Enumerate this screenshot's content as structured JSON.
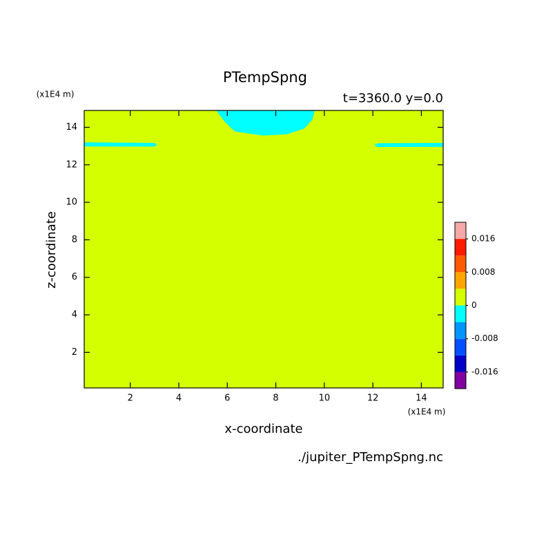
{
  "chart_data": {
    "type": "contourf",
    "title": "PTempSpng",
    "subtitle": "t=3360.0 y=0.0",
    "x_label": "x-coordinate",
    "y_label": "z-coordinate",
    "x_unit": "(x1E4 m)",
    "y_unit": "(x1E4 m)",
    "source": "./jupiter_PTempSpng.nc",
    "xlim": [
      0.1,
      14.9
    ],
    "ylim": [
      0.1,
      14.9
    ],
    "xticks": [
      2,
      4,
      6,
      8,
      10,
      12,
      14
    ],
    "yticks": [
      2,
      4,
      6,
      8,
      10,
      12,
      14
    ],
    "levels": [
      -0.02,
      -0.016,
      -0.012,
      -0.008,
      -0.004,
      0,
      0.004,
      0.008,
      0.012,
      0.016,
      0.02
    ],
    "colors": [
      "#8000a0",
      "#0000c8",
      "#0050ff",
      "#0096ff",
      "#00ffff",
      "#d4ff00",
      "#ffa500",
      "#ff5a00",
      "#ff1a00",
      "#f4a8a8"
    ],
    "cbar_ticks": [
      -0.016,
      -0.008,
      0,
      0.008,
      0.016
    ],
    "background_band": [
      0,
      0.004
    ],
    "regions": [
      {
        "band": [
          -0.004,
          0
        ],
        "x": [
          5.54,
          5.89,
          6.31,
          7.46,
          8.46,
          9.17,
          9.51,
          9.6
        ],
        "y": [
          14.9,
          14.3,
          13.78,
          13.56,
          13.63,
          13.93,
          14.41,
          14.9
        ]
      },
      {
        "band": [
          -0.004,
          0
        ],
        "x": [
          0.1,
          3.0,
          3.1,
          3.0,
          0.1
        ],
        "y": [
          13.2,
          13.17,
          13.07,
          12.97,
          12.98
        ]
      },
      {
        "band": [
          -0.004,
          0
        ],
        "x": [
          14.9,
          12.2,
          12.06,
          12.2,
          14.9
        ],
        "y": [
          13.17,
          13.15,
          13.05,
          12.95,
          12.96
        ]
      }
    ]
  }
}
